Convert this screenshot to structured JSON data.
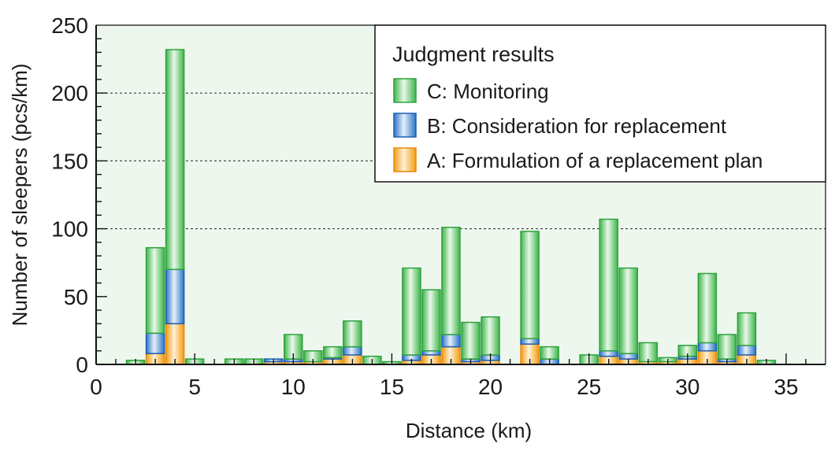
{
  "chart_data": {
    "type": "bar",
    "stacked": true,
    "xlabel": "Distance (km)",
    "ylabel": "Number of sleepers (pcs/km)",
    "xlim": [
      0,
      37
    ],
    "ylim": [
      0,
      250
    ],
    "xticks": [
      "0",
      "5",
      "10",
      "15",
      "20",
      "25",
      "30",
      "35"
    ],
    "yticks": [
      "0",
      "50",
      "100",
      "150",
      "200",
      "250"
    ],
    "grid_y": [
      100,
      150,
      200
    ],
    "legend_title": "Judgment results",
    "legend_position": "top-right",
    "x": [
      2,
      3,
      4,
      5,
      7,
      8,
      9,
      10,
      11,
      12,
      13,
      14,
      15,
      16,
      17,
      18,
      19,
      20,
      22,
      23,
      25,
      26,
      27,
      28,
      29,
      30,
      31,
      32,
      33,
      34
    ],
    "series": [
      {
        "name": "A: Formulation of a replacement plan",
        "color": "#f5a623",
        "values": [
          0,
          8,
          30,
          0,
          0,
          0,
          2,
          2,
          2,
          4,
          7,
          0,
          0,
          3,
          7,
          13,
          2,
          3,
          15,
          0,
          0,
          6,
          4,
          2,
          2,
          4,
          10,
          2,
          7,
          0
        ]
      },
      {
        "name": "B: Consideration for replacement",
        "color": "#2a73c7",
        "values": [
          0,
          15,
          40,
          0,
          0,
          0,
          2,
          2,
          0,
          1,
          6,
          0,
          0,
          4,
          3,
          9,
          2,
          4,
          4,
          4,
          0,
          4,
          4,
          0,
          0,
          2,
          6,
          2,
          7,
          0
        ]
      },
      {
        "name": "C: Monitoring",
        "color": "#3db54a",
        "values": [
          3,
          63,
          162,
          4,
          4,
          4,
          0,
          18,
          8,
          8,
          19,
          6,
          2,
          64,
          45,
          79,
          27,
          28,
          79,
          9,
          7,
          97,
          63,
          14,
          3,
          8,
          51,
          18,
          24,
          3
        ]
      }
    ]
  }
}
